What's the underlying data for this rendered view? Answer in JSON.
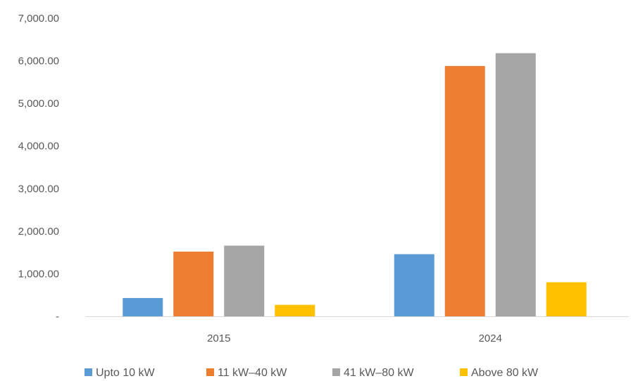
{
  "chart_data": {
    "type": "bar",
    "title": "",
    "xlabel": "",
    "ylabel": "",
    "categories": [
      "2015",
      "2024"
    ],
    "series": [
      {
        "name": "Upto 10 kW",
        "color": "#5B9BD5",
        "values": [
          430,
          1460
        ]
      },
      {
        "name": "11 kW–40 kW",
        "color": "#ED7D31",
        "values": [
          1520,
          5880
        ]
      },
      {
        "name": "41 kW–80 kW",
        "color": "#A5A5A5",
        "values": [
          1660,
          6180
        ]
      },
      {
        "name": "Above 80 kW",
        "color": "#FFC000",
        "values": [
          270,
          800
        ]
      }
    ],
    "ylim": [
      0,
      7000
    ],
    "yticks": [
      0,
      1000,
      2000,
      3000,
      4000,
      5000,
      6000,
      7000
    ],
    "ytick_labels": [
      "-",
      "1,000.00",
      "2,000.00",
      "3,000.00",
      "4,000.00",
      "5,000.00",
      "6,000.00",
      "7,000.00"
    ],
    "grid": false,
    "legend_position": "bottom"
  }
}
